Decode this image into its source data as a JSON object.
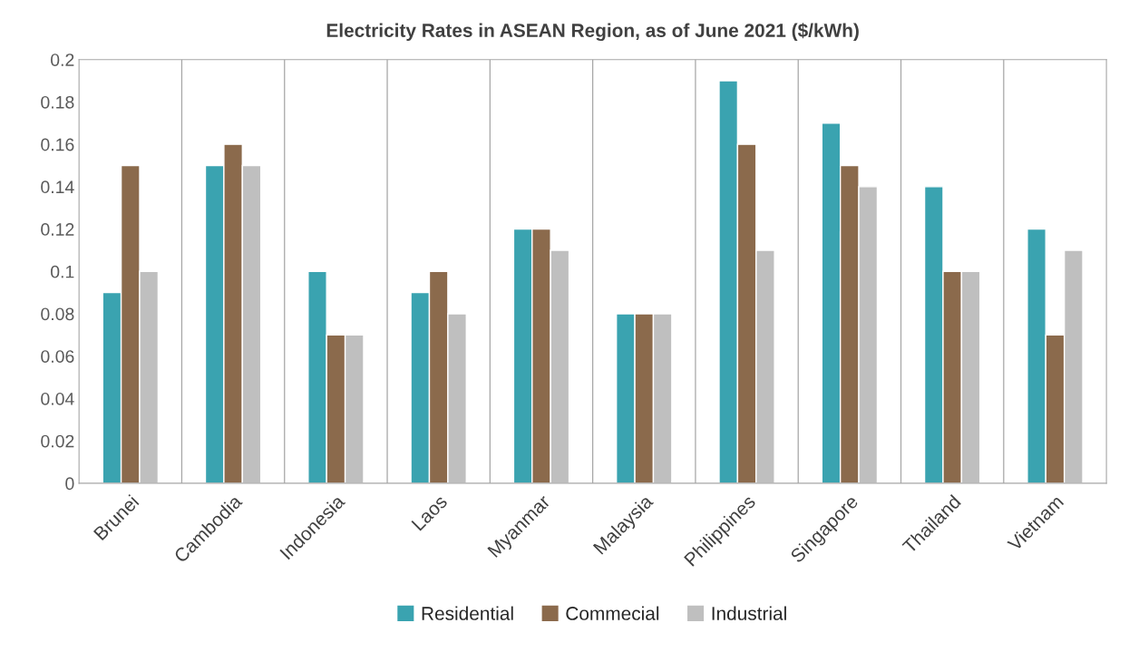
{
  "chart_data": {
    "type": "bar",
    "title": "Electricity Rates in ASEAN Region, as of June 2021 ($/kWh)",
    "categories": [
      "Brunei",
      "Cambodia",
      "Indonesia",
      "Laos",
      "Myanmar",
      "Malaysia",
      "Philippines",
      "Singapore",
      "Thailand",
      "Vietnam"
    ],
    "series": [
      {
        "name": "Residential",
        "color": "#3aa3b0",
        "values": [
          0.09,
          0.15,
          0.1,
          0.09,
          0.12,
          0.08,
          0.19,
          0.17,
          0.14,
          0.12
        ]
      },
      {
        "name": "Commecial",
        "color": "#8b6a4c",
        "values": [
          0.15,
          0.16,
          0.07,
          0.1,
          0.12,
          0.08,
          0.16,
          0.15,
          0.1,
          0.07
        ]
      },
      {
        "name": "Industrial",
        "color": "#bfbfbf",
        "values": [
          0.1,
          0.15,
          0.07,
          0.08,
          0.11,
          0.08,
          0.11,
          0.14,
          0.1,
          0.11
        ]
      }
    ],
    "ylim": [
      0,
      0.2
    ],
    "yticks": [
      0,
      {
        "value": 0.02,
        "label": "0.02"
      },
      {
        "value": 0.04,
        "label": "0.04"
      },
      {
        "value": 0.06,
        "label": "0.06"
      },
      {
        "value": 0.08,
        "label": "0.08"
      },
      {
        "value": 0.1,
        "label": "0.1"
      },
      {
        "value": 0.12,
        "label": "0.12"
      },
      {
        "value": 0.14,
        "label": "0.14"
      },
      {
        "value": 0.16,
        "label": "0.16"
      },
      {
        "value": 0.18,
        "label": "0.18"
      },
      {
        "value": 0.2,
        "label": "0.2"
      }
    ],
    "grid": "x",
    "legend": "bottom"
  }
}
